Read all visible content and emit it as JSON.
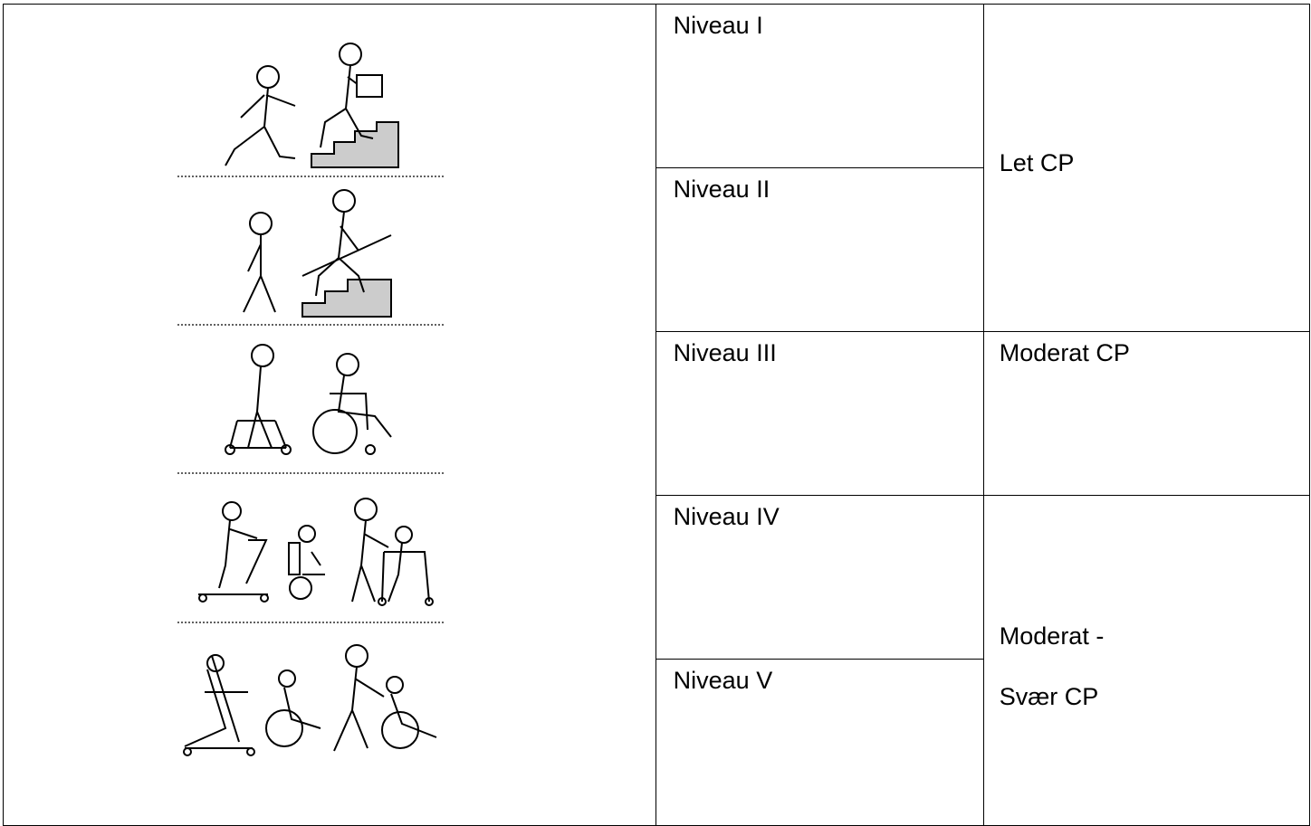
{
  "table": {
    "levels": [
      "Niveau I",
      "Niveau II",
      "Niveau III",
      "Niveau IV",
      "Niveau V"
    ],
    "classifications": {
      "mild": "Let CP",
      "moderate": "Moderat CP",
      "severe_line1": "Moderat -",
      "severe_line2": "Svær CP"
    }
  },
  "illustrations": [
    "walking-running-stairs-icon",
    "walking-railing-stairs-icon",
    "walker-wheelchair-icon",
    "stander-powerchair-walker-icon",
    "stander-wheelchair-pushed-icon"
  ]
}
